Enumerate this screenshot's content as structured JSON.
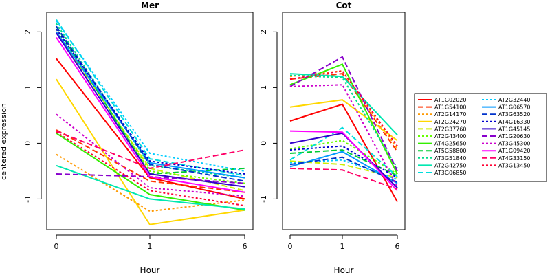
{
  "chart_data": [
    {
      "type": "line",
      "title": "Mer",
      "xlabel": "Hour",
      "ylabel": "centered expression",
      "x": [
        "0",
        "1",
        "6"
      ],
      "ylim": [
        -1.55,
        2.35
      ],
      "yticks": [
        -1,
        0,
        1,
        2
      ],
      "grid": false,
      "series": [
        {
          "name": "AT1G02020",
          "color": "#FF0000",
          "dash": "solid",
          "values": [
            1.52,
            -0.62,
            -1.0
          ]
        },
        {
          "name": "AT1G54100",
          "color": "#FF3300",
          "dash": "dashed",
          "values": [
            0.24,
            -0.68,
            -0.88
          ]
        },
        {
          "name": "AT2G14170",
          "color": "#FF9900",
          "dash": "dotted",
          "values": [
            -0.2,
            -1.22,
            -1.02
          ]
        },
        {
          "name": "AT2G24270",
          "color": "#FFD700",
          "dash": "solid",
          "values": [
            1.15,
            -1.46,
            -1.2
          ]
        },
        {
          "name": "AT2G37760",
          "color": "#CCEE00",
          "dash": "dashed",
          "values": [
            2.0,
            -0.45,
            -0.85
          ]
        },
        {
          "name": "AT2G43400",
          "color": "#66FF00",
          "dash": "dotted",
          "values": [
            2.05,
            -0.5,
            -0.72
          ]
        },
        {
          "name": "AT4G25650",
          "color": "#33EE00",
          "dash": "solid",
          "values": [
            0.18,
            -0.92,
            -1.2
          ]
        },
        {
          "name": "AT5G58800",
          "color": "#00CC33",
          "dash": "dashed",
          "values": [
            2.1,
            -0.55,
            -0.45
          ]
        },
        {
          "name": "AT3G51840",
          "color": "#00DD88",
          "dash": "dotted",
          "values": [
            2.15,
            -0.4,
            -0.62
          ]
        },
        {
          "name": "AT2G42750",
          "color": "#00E8B0",
          "dash": "solid",
          "values": [
            -0.4,
            -1.0,
            -1.18
          ]
        },
        {
          "name": "AT3G06850",
          "color": "#00DDDD",
          "dash": "dashed",
          "values": [
            2.22,
            -0.28,
            -0.58
          ]
        },
        {
          "name": "AT2G32440",
          "color": "#00CCFF",
          "dash": "dotted",
          "values": [
            2.2,
            -0.18,
            -0.5
          ]
        },
        {
          "name": "AT1G06570",
          "color": "#0099FF",
          "dash": "solid",
          "values": [
            2.0,
            -0.35,
            -0.62
          ]
        },
        {
          "name": "AT3G63520",
          "color": "#0033CC",
          "dash": "dashed",
          "values": [
            2.1,
            -0.38,
            -0.68
          ]
        },
        {
          "name": "AT4G16330",
          "color": "#0000CC",
          "dash": "dotted",
          "values": [
            2.05,
            -0.32,
            -0.55
          ]
        },
        {
          "name": "AT1G45145",
          "color": "#3300CC",
          "dash": "solid",
          "values": [
            1.98,
            -0.55,
            -0.78
          ]
        },
        {
          "name": "AT1G20630",
          "color": "#8800CC",
          "dash": "dashed",
          "values": [
            -0.55,
            -0.6,
            -0.72
          ]
        },
        {
          "name": "AT3G45300",
          "color": "#CC00CC",
          "dash": "dotted",
          "values": [
            0.52,
            -0.8,
            -0.95
          ]
        },
        {
          "name": "AT1G09420",
          "color": "#FF00FF",
          "dash": "solid",
          "values": [
            1.9,
            -0.6,
            -0.88
          ]
        },
        {
          "name": "AT4G33150",
          "color": "#FF0066",
          "dash": "dashed",
          "values": [
            0.22,
            -0.45,
            -0.12
          ]
        },
        {
          "name": "AT3G13450",
          "color": "#FF0033",
          "dash": "dotted",
          "values": [
            0.2,
            -0.85,
            -1.12
          ]
        }
      ]
    },
    {
      "type": "line",
      "title": "Cot",
      "xlabel": "Hour",
      "ylabel": "",
      "x": [
        "0",
        "1",
        "6"
      ],
      "ylim": [
        -1.55,
        2.35
      ],
      "yticks": [
        -1,
        0,
        1,
        2
      ],
      "grid": false,
      "series": [
        {
          "name": "AT1G02020",
          "color": "#FF0000",
          "dash": "solid",
          "values": [
            0.4,
            0.7,
            -1.05
          ]
        },
        {
          "name": "AT1G54100",
          "color": "#FF3300",
          "dash": "dashed",
          "values": [
            1.15,
            1.25,
            -0.15
          ]
        },
        {
          "name": "AT2G14170",
          "color": "#FF9900",
          "dash": "dotted",
          "values": [
            1.2,
            1.3,
            -0.1
          ]
        },
        {
          "name": "AT2G24270",
          "color": "#FFD700",
          "dash": "solid",
          "values": [
            0.65,
            0.78,
            0.05
          ]
        },
        {
          "name": "AT2G37760",
          "color": "#CCEE00",
          "dash": "dashed",
          "values": [
            -0.32,
            -0.38,
            -0.62
          ]
        },
        {
          "name": "AT2G43400",
          "color": "#66FF00",
          "dash": "dotted",
          "values": [
            -0.1,
            0.05,
            -0.55
          ]
        },
        {
          "name": "AT4G25650",
          "color": "#33EE00",
          "dash": "solid",
          "values": [
            1.05,
            1.42,
            -0.55
          ]
        },
        {
          "name": "AT5G58800",
          "color": "#00CC33",
          "dash": "dashed",
          "values": [
            -0.18,
            -0.12,
            -0.58
          ]
        },
        {
          "name": "AT3G51840",
          "color": "#00DD88",
          "dash": "dotted",
          "values": [
            1.22,
            1.18,
            -0.45
          ]
        },
        {
          "name": "AT2G42750",
          "color": "#00E8B0",
          "dash": "solid",
          "values": [
            1.25,
            1.2,
            0.15
          ]
        },
        {
          "name": "AT3G06850",
          "color": "#00DDDD",
          "dash": "dashed",
          "values": [
            -0.3,
            0.28,
            -0.6
          ]
        },
        {
          "name": "AT2G32440",
          "color": "#00CCFF",
          "dash": "dotted",
          "values": [
            -0.35,
            -0.3,
            -0.65
          ]
        },
        {
          "name": "AT1G06570",
          "color": "#0099FF",
          "dash": "solid",
          "values": [
            -0.42,
            -0.15,
            -0.72
          ]
        },
        {
          "name": "AT3G63520",
          "color": "#0033CC",
          "dash": "dashed",
          "values": [
            -0.38,
            -0.25,
            -0.7
          ]
        },
        {
          "name": "AT4G16330",
          "color": "#0000CC",
          "dash": "dotted",
          "values": [
            -0.12,
            -0.05,
            -0.62
          ]
        },
        {
          "name": "AT1G45145",
          "color": "#3300CC",
          "dash": "solid",
          "values": [
            0.0,
            0.18,
            -0.8
          ]
        },
        {
          "name": "AT1G20630",
          "color": "#8800CC",
          "dash": "dashed",
          "values": [
            1.02,
            1.55,
            -0.5
          ]
        },
        {
          "name": "AT3G45300",
          "color": "#CC00CC",
          "dash": "dotted",
          "values": [
            1.02,
            1.05,
            -0.78
          ]
        },
        {
          "name": "AT1G09420",
          "color": "#FF00FF",
          "dash": "solid",
          "values": [
            0.22,
            0.2,
            -0.85
          ]
        },
        {
          "name": "AT4G33150",
          "color": "#FF0066",
          "dash": "dashed",
          "values": [
            -0.45,
            -0.48,
            -0.82
          ]
        },
        {
          "name": "AT3G13450",
          "color": "#FF0033",
          "dash": "dotted",
          "values": [
            1.15,
            1.3,
            -0.05
          ]
        }
      ]
    }
  ],
  "legend": {
    "placement": "right",
    "columns": [
      [
        "AT1G02020",
        "AT1G54100",
        "AT2G14170",
        "AT2G24270",
        "AT2G37760",
        "AT2G43400",
        "AT4G25650",
        "AT5G58800",
        "AT3G51840",
        "AT2G42750",
        "AT3G06850"
      ],
      [
        "AT2G32440",
        "AT1G06570",
        "AT3G63520",
        "AT4G16330",
        "AT1G45145",
        "AT1G20630",
        "AT3G45300",
        "AT1G09420",
        "AT4G33150",
        "AT3G13450"
      ]
    ]
  }
}
